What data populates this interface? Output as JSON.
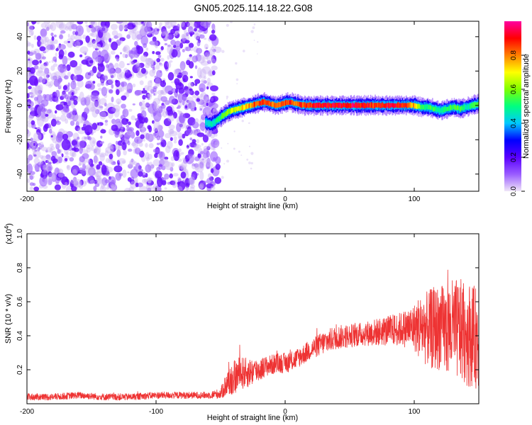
{
  "page": {
    "title": "GN05.2025.114.18.22.G08"
  },
  "chart_data": [
    {
      "type": "heatmap",
      "title": "GN05.2025.114.18.22.G08",
      "xlabel": "Height of straight line (km)",
      "ylabel": "Frequency (Hz)",
      "xlim": [
        -200,
        150
      ],
      "ylim": [
        -50,
        49
      ],
      "x_ticks": [
        -200,
        -100,
        0,
        100
      ],
      "x_tick_labels": [
        "-200",
        "-100",
        "0",
        "100"
      ],
      "y_ticks": [
        -40,
        -20,
        0,
        20,
        40
      ],
      "y_tick_labels": [
        "-40",
        "-20",
        "0",
        "20",
        "40"
      ],
      "colorbar": {
        "label": "Normalized spectral amplitude",
        "range": [
          0,
          1
        ],
        "ticks": [
          0.0,
          0.2,
          0.4,
          0.6,
          0.8
        ],
        "tick_labels": [
          "0.0",
          "0.2",
          "0.4",
          "0.6",
          "0.8"
        ],
        "colormap": [
          "#f0e6f8",
          "#9a5cff",
          "#5a00ff",
          "#0000ff",
          "#00c8ff",
          "#00ff80",
          "#80ff00",
          "#ffff00",
          "#ff8000",
          "#ff0000",
          "#ff00a0"
        ]
      },
      "noise_region": {
        "x_range": [
          -200,
          -52
        ],
        "color": "#7a1fff"
      },
      "ridge": {
        "x": [
          -62,
          -57,
          -52,
          -47,
          -42,
          -37,
          -32,
          -27,
          -22,
          -17,
          -12,
          -7,
          -2,
          3,
          8,
          15,
          30,
          50,
          70,
          90,
          100,
          105,
          110,
          115,
          120,
          125,
          130,
          135,
          140,
          145,
          150
        ],
        "y": [
          -10,
          -11,
          -8,
          -5,
          -3,
          -2,
          -1,
          0,
          1,
          2,
          1,
          0,
          1,
          2,
          1,
          0,
          0,
          0,
          0,
          0,
          0,
          -1,
          -1,
          -2,
          -3,
          -2,
          -1,
          -2,
          -1,
          0,
          1
        ],
        "amplitude": [
          0.45,
          0.5,
          0.55,
          0.6,
          0.7,
          0.75,
          0.8,
          0.85,
          0.9,
          0.95,
          0.9,
          0.85,
          0.9,
          0.95,
          0.9,
          0.95,
          1.0,
          1.0,
          0.95,
          1.0,
          0.8,
          0.6,
          0.55,
          0.6,
          0.5,
          0.55,
          0.6,
          0.6,
          0.5,
          0.55,
          0.6
        ]
      }
    },
    {
      "type": "line",
      "xlabel": "Height of straight line (km)",
      "ylabel": "SNR (10 * v/v)",
      "y_multiplier": "(x10",
      "y_multiplier_exp": "4",
      "y_multiplier_close": ")",
      "xlim": [
        -200,
        150
      ],
      "ylim": [
        0,
        1.0
      ],
      "x_ticks": [
        -200,
        -100,
        0,
        100
      ],
      "x_tick_labels": [
        "-200",
        "-100",
        "0",
        "100"
      ],
      "y_ticks": [
        0.2,
        0.4,
        0.6,
        0.8,
        1.0
      ],
      "y_tick_labels": [
        "0.2",
        "0.4",
        "0.6",
        "0.8",
        "1.0"
      ],
      "color": "#ee3333",
      "series": [
        {
          "x": [
            -200,
            -180,
            -160,
            -140,
            -120,
            -100,
            -80,
            -60,
            -50,
            -45,
            -40,
            -35,
            -30,
            -25,
            -20,
            -15,
            -10,
            -5,
            0,
            5,
            10,
            20,
            30,
            40,
            50,
            60,
            70,
            80,
            90,
            100,
            105,
            110,
            115,
            120,
            125,
            130,
            135,
            140,
            145,
            150
          ],
          "y": [
            0.04,
            0.04,
            0.05,
            0.04,
            0.04,
            0.05,
            0.05,
            0.05,
            0.06,
            0.12,
            0.15,
            0.18,
            0.18,
            0.19,
            0.2,
            0.22,
            0.23,
            0.24,
            0.24,
            0.25,
            0.27,
            0.32,
            0.36,
            0.39,
            0.4,
            0.41,
            0.42,
            0.43,
            0.44,
            0.45,
            0.45,
            0.44,
            0.44,
            0.45,
            0.43,
            0.44,
            0.43,
            0.42,
            0.4,
            0.38
          ],
          "spread": [
            0.02,
            0.02,
            0.02,
            0.02,
            0.02,
            0.02,
            0.02,
            0.02,
            0.03,
            0.08,
            0.1,
            0.1,
            0.09,
            0.08,
            0.07,
            0.06,
            0.06,
            0.06,
            0.06,
            0.06,
            0.06,
            0.06,
            0.07,
            0.07,
            0.07,
            0.07,
            0.08,
            0.09,
            0.1,
            0.14,
            0.2,
            0.22,
            0.25,
            0.25,
            0.27,
            0.3,
            0.3,
            0.32,
            0.3,
            0.3
          ]
        }
      ]
    }
  ]
}
